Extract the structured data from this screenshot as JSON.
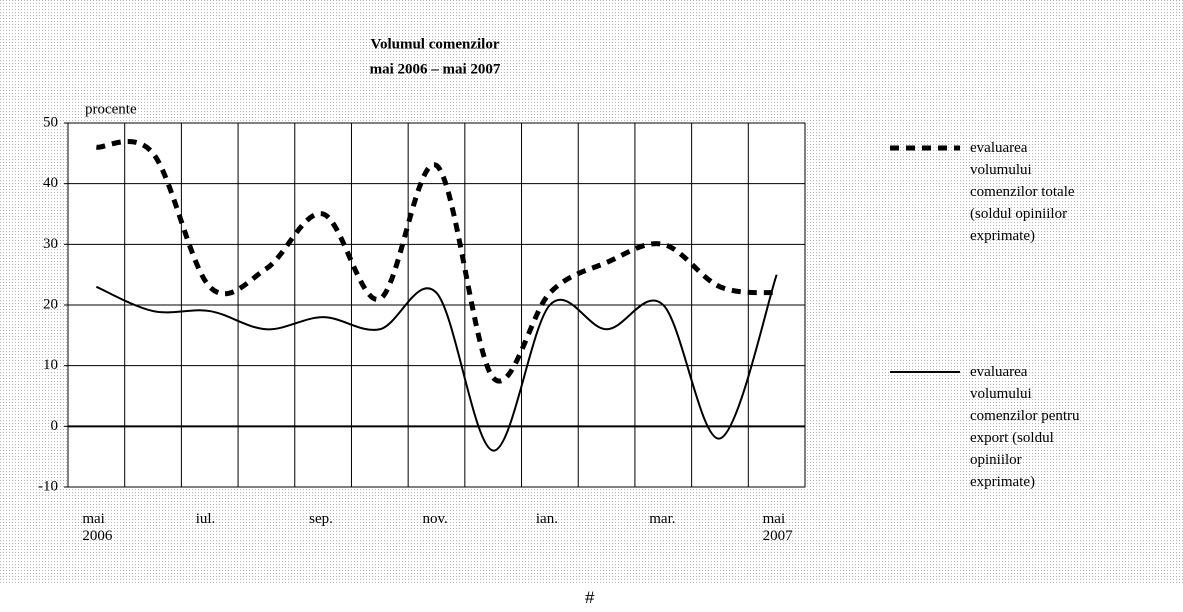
{
  "chart_data": {
    "type": "line",
    "title": "Volumul comenzilor",
    "subtitle": "mai 2006 – mai 2007",
    "y_label": "procente",
    "categories": [
      "mai\n2006",
      null,
      "iul.",
      null,
      "sep.",
      null,
      "nov.",
      null,
      "ian.",
      null,
      "mar.",
      null,
      "mai\n2007"
    ],
    "series": [
      {
        "name": "evaluarea volumului comenzilor totale (soldul opiniilor exprimate)",
        "color": "#000000",
        "style": "dashed",
        "values": [
          46,
          45,
          23,
          26,
          35,
          21,
          43,
          8,
          22,
          27,
          30,
          23,
          22
        ]
      },
      {
        "name": "evaluarea volumului comenzilor pentru export (soldul opiniilor exprimate)",
        "color": "#000000",
        "style": "solid",
        "values": [
          23,
          19,
          19,
          16,
          18,
          16,
          22,
          -4,
          20,
          16,
          20,
          -2,
          25
        ]
      }
    ],
    "ylim": [
      -10,
      50
    ],
    "yticks": [
      -10,
      0,
      10,
      20,
      30,
      40,
      50
    ],
    "grid": true
  },
  "footer": "#"
}
